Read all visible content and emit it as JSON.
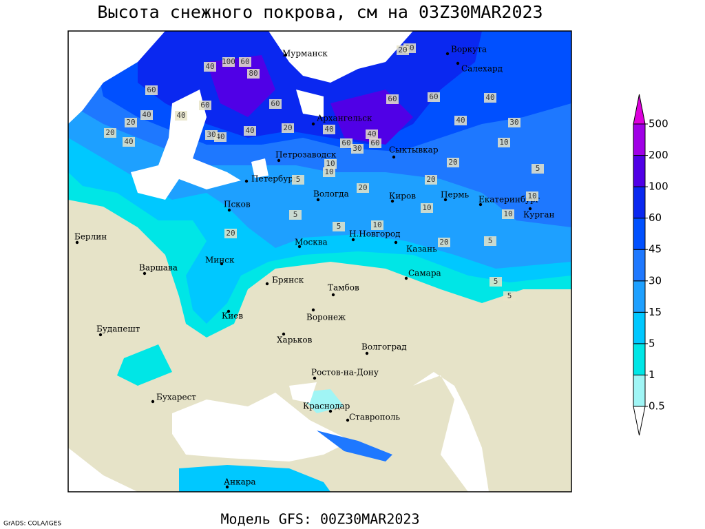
{
  "header": {
    "title": "Высота снежного покрова, см на 03Z30MAR2023"
  },
  "cities": [
    "Мурманск",
    "Воркута",
    "Салехард",
    "Архангельск",
    "Сыктывкар",
    "Петрозаводск",
    "Петербург",
    "Вологда",
    "Киров",
    "Пермь",
    "Екатеринбург",
    "Курган",
    "Псков",
    "Берлин",
    "Москва",
    "Н.Новгород",
    "Казань",
    "Минск",
    "Варшава",
    "Самара",
    "Брянск",
    "Тамбов",
    "Киев",
    "Воронеж",
    "Будапешт",
    "Харьков",
    "Волгоград",
    "Ростов-на-Дону",
    "Бухарест",
    "Краснодар",
    "Ставрополь",
    "Анкара"
  ],
  "contour_labels": [
    40,
    100,
    60,
    80,
    60,
    40,
    20,
    20,
    40,
    40,
    60,
    60,
    40,
    20,
    40,
    60,
    60,
    40,
    30,
    30,
    40,
    60,
    80,
    60,
    20,
    40,
    40,
    30,
    10,
    10,
    5,
    10,
    20,
    5,
    10,
    5,
    20,
    10,
    10,
    20,
    5,
    10,
    20,
    5,
    5,
    20,
    5
  ],
  "legend": {
    "levels": [
      0.5,
      1,
      5,
      15,
      30,
      45,
      60,
      100,
      200,
      500
    ],
    "colors": [
      "#ffffff",
      "#a0f5f5",
      "#00e6e6",
      "#00c8ff",
      "#1ea0ff",
      "#1e78ff",
      "#0050ff",
      "#0a28f0",
      "#5000e6",
      "#a000e6",
      "#dc00dc"
    ]
  },
  "footer": {
    "model": "Модель GFS: 00Z30MAR2023",
    "credit": "GrADS: COLA/IGES"
  }
}
